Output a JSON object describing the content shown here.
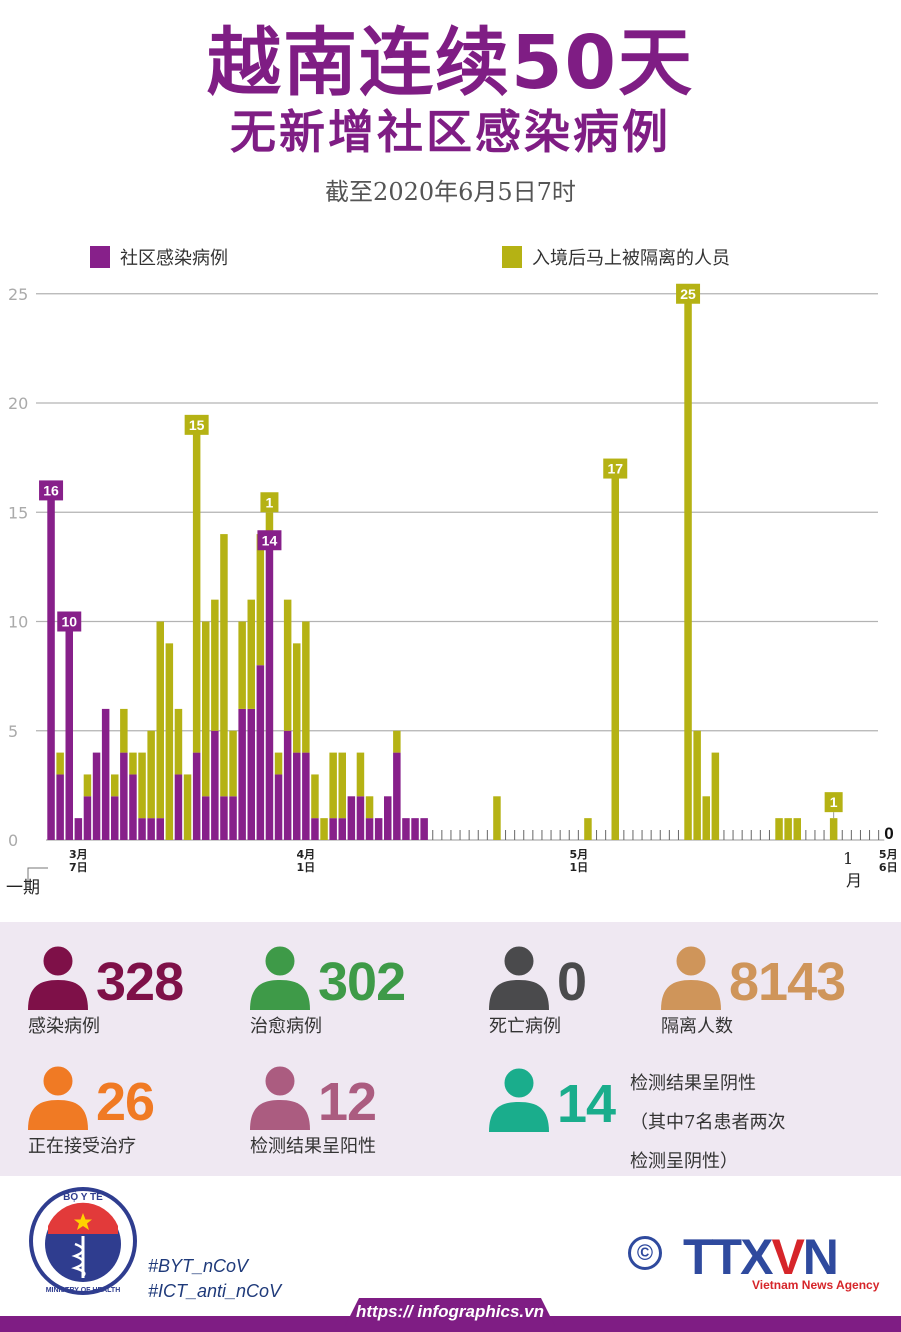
{
  "header": {
    "title_line1": "越南连续50天",
    "title_line2": "无新增社区感染病例",
    "subtitle": "截至2020年6月5日7时",
    "title_color": "#7f1d84"
  },
  "legend": [
    {
      "label": "社区感染病例",
      "color": "#87208a"
    },
    {
      "label": "入境后马上被隔离的人员",
      "color": "#b5b214"
    }
  ],
  "chart_data": {
    "type": "bar",
    "stacked": true,
    "title": "越南连续50天无新增社区感染病例",
    "subtitle": "截至2020年6月5日7时",
    "xlabel": "",
    "ylabel": "",
    "ylim": [
      0,
      25
    ],
    "yticks": [
      0,
      5,
      10,
      15,
      20,
      25
    ],
    "grid": true,
    "legend_position": "top",
    "x_tick_labels": [
      {
        "label": "3月\n7日",
        "index": 3
      },
      {
        "label": "4月\n1日",
        "index": 28
      },
      {
        "label": "5月\n1日",
        "index": 58
      },
      {
        "label": "5月\n6日",
        "index": 92
      }
    ],
    "annotations": [
      {
        "index": 0,
        "series": "社区感染病例",
        "text": "16"
      },
      {
        "index": 2,
        "series": "社区感染病例",
        "text": "10"
      },
      {
        "index": 16,
        "series": "入境后马上被隔离的人员",
        "text": "15"
      },
      {
        "index": 24,
        "series": "入境后马上被隔离的人员",
        "text": "1"
      },
      {
        "index": 24,
        "series": "社区感染病例",
        "text": "14"
      },
      {
        "index": 62,
        "series": "入境后马上被隔离的人员",
        "text": "17"
      },
      {
        "index": 70,
        "series": "入境后马上被隔离的人员",
        "text": "25"
      },
      {
        "index": 86,
        "series": "入境后马上被隔离的人员",
        "text": "1"
      },
      {
        "index": 92,
        "series": "社区感染病例",
        "text": "0"
      }
    ],
    "side_labels": {
      "left": "一期",
      "right": "1\n月"
    },
    "series": [
      {
        "name": "社区感染病例",
        "color": "#87208a",
        "values": [
          16,
          3,
          10,
          1,
          2,
          4,
          6,
          2,
          4,
          3,
          1,
          1,
          1,
          0,
          3,
          0,
          4,
          2,
          5,
          2,
          2,
          6,
          6,
          8,
          14,
          3,
          5,
          4,
          4,
          1,
          0,
          1,
          1,
          2,
          2,
          1,
          1,
          2,
          4,
          1,
          1,
          1,
          0,
          0,
          0,
          0,
          0,
          0,
          0,
          0,
          0,
          0,
          0,
          0,
          0,
          0,
          0,
          0,
          0,
          0,
          0,
          0,
          0,
          0,
          0,
          0,
          0,
          0,
          0,
          0,
          0,
          0,
          0,
          0,
          0,
          0,
          0,
          0,
          0,
          0,
          0,
          0,
          0,
          0,
          0,
          0,
          0,
          0,
          0,
          0,
          0,
          0,
          0
        ]
      },
      {
        "name": "入境后马上被隔离的人员",
        "color": "#b5b214",
        "values": [
          0,
          1,
          0,
          0,
          1,
          0,
          0,
          1,
          2,
          1,
          3,
          4,
          9,
          9,
          3,
          3,
          15,
          8,
          6,
          12,
          3,
          4,
          5,
          6,
          1,
          1,
          6,
          5,
          6,
          2,
          1,
          3,
          3,
          0,
          2,
          1,
          0,
          0,
          1,
          0,
          0,
          0,
          0,
          0,
          0,
          0,
          0,
          0,
          0,
          2,
          0,
          0,
          0,
          0,
          0,
          0,
          0,
          0,
          0,
          1,
          0,
          0,
          17,
          0,
          0,
          0,
          0,
          0,
          0,
          0,
          25,
          5,
          2,
          4,
          0,
          0,
          0,
          0,
          0,
          0,
          1,
          1,
          1,
          0,
          0,
          0,
          1,
          0,
          0,
          0,
          0,
          0,
          0
        ]
      }
    ]
  },
  "stats": [
    {
      "value": "328",
      "label": "感染病例",
      "color": "#7e1048"
    },
    {
      "value": "302",
      "label": "治愈病例",
      "color": "#3e9a48"
    },
    {
      "value": "0",
      "label": "死亡病例",
      "color": "#4a4a4c"
    },
    {
      "value": "8143",
      "label": "隔离人数",
      "color": "#cf955a"
    },
    {
      "value": "26",
      "label": "正在接受治疗",
      "color": "#f07a24"
    },
    {
      "value": "12",
      "label": "检测结果呈阳性",
      "color": "#ab5c80"
    },
    {
      "value": "14",
      "label": "检测结果呈阴性",
      "color": "#1aad8c"
    }
  ],
  "negative_note": {
    "line1": "检测结果呈阴性",
    "line2": "（其中7名患者两次",
    "line3": "检测呈阴性）"
  },
  "footer": {
    "ministry_top": "BỘ Y TẾ",
    "ministry_bottom": "MINISTRY OF HEALTH",
    "hashtag1": "#BYT_nCoV",
    "hashtag2": "#ICT_anti_nCoV",
    "url": "https:// infographics.vn",
    "copyright_symbol": "©",
    "agency_logo_a": "TTX",
    "agency_logo_b": "V",
    "agency_logo_c": "N",
    "agency_name": "Vietnam News Agency"
  }
}
